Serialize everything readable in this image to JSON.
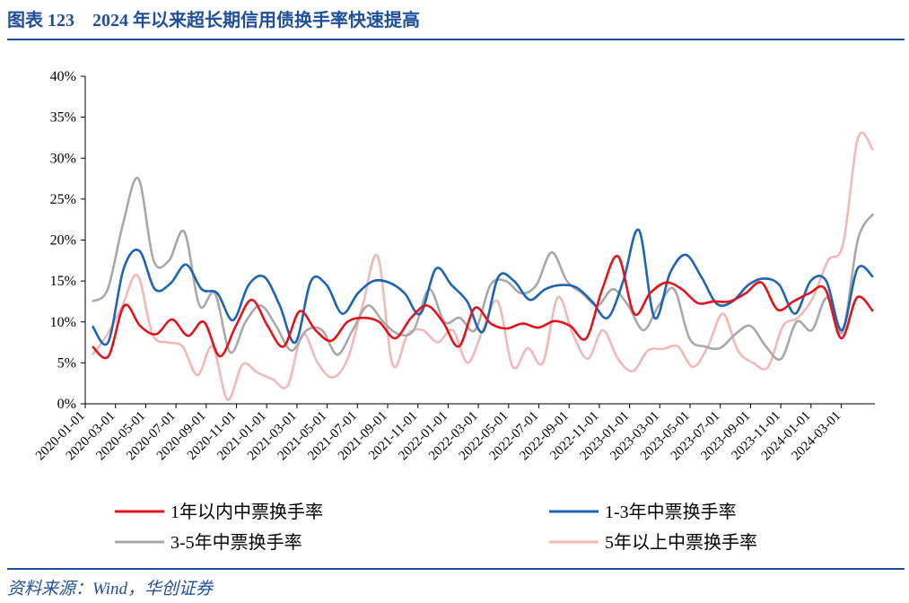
{
  "header": {
    "title": "图表 123    2024 年以来超长期信用债换手率快速提高"
  },
  "footer": {
    "source": "资料来源：Wind，华创证券"
  },
  "colors": {
    "accent": "#1f4e9c"
  },
  "chart_data": {
    "type": "line",
    "title": "",
    "xlabel": "",
    "ylabel": "",
    "ylim": [
      0,
      40
    ],
    "y_unit": "%",
    "y_ticks": [
      "0%",
      "5%",
      "10%",
      "15%",
      "20%",
      "25%",
      "30%",
      "35%",
      "40%"
    ],
    "x_tick_labels": [
      "2020-01-01",
      "2020-03-01",
      "2020-05-01",
      "2020-07-01",
      "2020-09-01",
      "2020-11-01",
      "2021-01-01",
      "2021-03-01",
      "2021-05-01",
      "2021-07-01",
      "2021-09-01",
      "2021-11-01",
      "2022-01-01",
      "2022-03-01",
      "2022-05-01",
      "2022-07-01",
      "2022-09-01",
      "2022-11-01",
      "2023-01-01",
      "2023-03-01",
      "2023-05-01",
      "2023-07-01",
      "2023-09-01",
      "2023-11-01",
      "2024-01-01",
      "2024-03-01"
    ],
    "legend_position": "bottom",
    "grid": false,
    "series": [
      {
        "name": "1年以内中票换手率",
        "color": "#e3121b",
        "values": [
          7.0,
          5.8,
          12.0,
          9.5,
          8.5,
          10.3,
          8.3,
          10.0,
          5.8,
          9.5,
          12.7,
          9.5,
          7.0,
          11.3,
          9.0,
          7.7,
          10.0,
          10.5,
          10.0,
          8.0,
          10.5,
          12.0,
          10.0,
          7.0,
          11.7,
          9.8,
          9.2,
          9.8,
          9.3,
          10.1,
          9.5,
          8.0,
          14.0,
          18.0,
          11.0,
          13.5,
          14.8,
          14.0,
          12.3,
          12.5,
          12.5,
          13.5,
          14.8,
          11.5,
          12.5,
          13.5,
          14.0,
          8.0,
          13.0,
          11.3
        ]
      },
      {
        "name": "1-3年中票换手率",
        "color": "#1c64b4",
        "values": [
          9.5,
          7.5,
          16.5,
          18.7,
          14.0,
          14.7,
          17.0,
          14.0,
          13.5,
          10.2,
          14.5,
          15.5,
          12.0,
          7.5,
          15.0,
          14.5,
          11.0,
          13.5,
          15.0,
          14.8,
          13.5,
          11.0,
          16.5,
          14.5,
          12.5,
          8.8,
          15.5,
          15.0,
          12.7,
          14.0,
          14.5,
          14.2,
          12.5,
          10.5,
          15.0,
          21.2,
          10.5,
          16.0,
          18.2,
          15.5,
          12.2,
          12.5,
          14.5,
          15.3,
          14.5,
          11.0,
          15.0,
          15.0,
          9.0,
          16.5,
          15.5
        ]
      },
      {
        "name": "3-5年中票换手率",
        "color": "#a8a8a8",
        "values": [
          12.5,
          14.0,
          22.0,
          27.5,
          17.5,
          17.5,
          21.0,
          12.0,
          13.5,
          6.3,
          10.0,
          12.0,
          9.5,
          6.5,
          9.0,
          9.0,
          6.0,
          9.0,
          12.0,
          10.0,
          8.5,
          9.0,
          14.0,
          10.0,
          10.5,
          9.0,
          14.5,
          15.0,
          13.5,
          14.5,
          18.5,
          15.0,
          13.5,
          12.0,
          14.0,
          12.0,
          9.0,
          12.0,
          14.0,
          8.0,
          7.0,
          6.8,
          8.5,
          9.5,
          7.0,
          5.5,
          10.0,
          9.0,
          13.0,
          8.8,
          20.0,
          23.2
        ]
      },
      {
        "name": "5年以上中票换手率",
        "color": "#f2b8b8",
        "values": [
          6.0,
          8.5,
          12.0,
          15.7,
          8.5,
          7.5,
          7.0,
          3.5,
          7.0,
          0.5,
          4.8,
          3.8,
          3.0,
          2.2,
          8.5,
          5.0,
          3.2,
          5.5,
          12.0,
          18.0,
          4.8,
          8.5,
          9.0,
          7.5,
          9.0,
          5.0,
          9.0,
          12.5,
          4.5,
          6.8,
          5.0,
          13.0,
          8.5,
          5.5,
          9.0,
          5.5,
          4.0,
          6.5,
          6.7,
          7.0,
          4.5,
          7.0,
          11.0,
          6.5,
          5.0,
          4.5,
          9.5,
          10.5,
          13.0,
          17.5,
          19.5,
          32.5,
          31.0
        ]
      }
    ]
  }
}
